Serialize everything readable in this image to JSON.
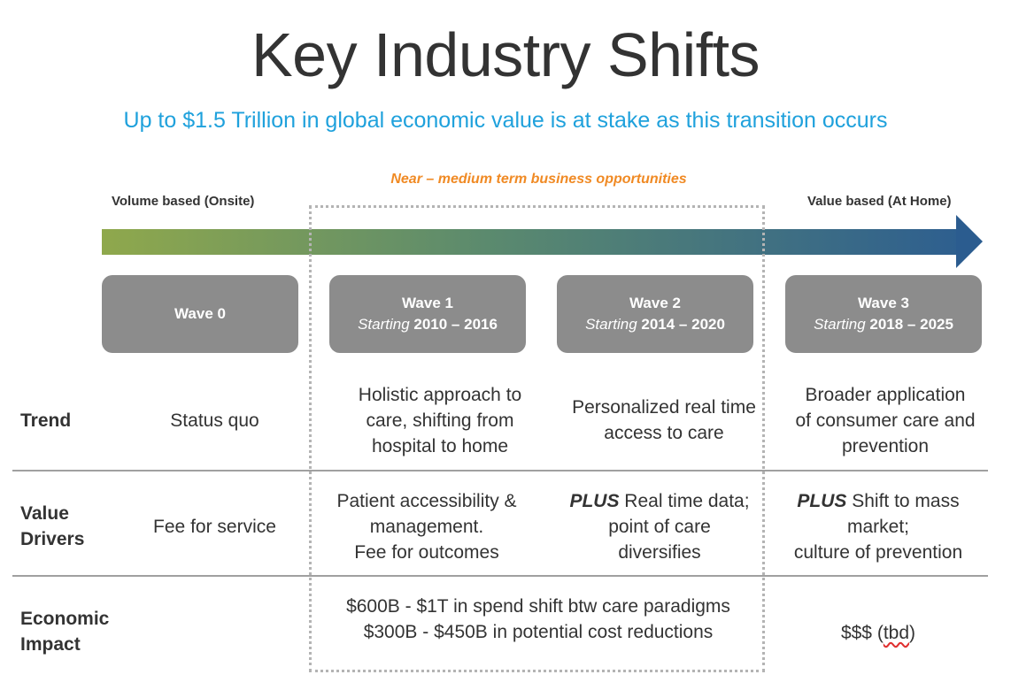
{
  "title": "Key Industry Shifts",
  "subtitle": "Up to $1.5 Trillion in global economic value is at stake as this transition occurs",
  "timeline": {
    "near_label": "Near – medium term business opportunities",
    "start_label": "Volume based (Onsite)",
    "end_label": "Value based (At Home)"
  },
  "waves": [
    {
      "name": "Wave 0",
      "starting": "",
      "years": ""
    },
    {
      "name": "Wave 1",
      "starting": "Starting",
      "years": "2010 – 2016"
    },
    {
      "name": "Wave 2",
      "starting": "Starting",
      "years": "2014 – 2020"
    },
    {
      "name": "Wave 3",
      "starting": "Starting",
      "years": "2018 – 2025"
    }
  ],
  "rows": {
    "trend": {
      "label": "Trend",
      "cells": [
        [
          "Status quo"
        ],
        [
          "Holistic approach to",
          "care, shifting from",
          "hospital to home"
        ],
        [
          "Personalized real time",
          "access to care"
        ],
        [
          "Broader application",
          "of consumer care and",
          "prevention"
        ]
      ]
    },
    "value_drivers": {
      "label_line1": "Value",
      "label_line2": "Drivers",
      "cells": [
        [
          "Fee for service"
        ],
        [
          "Patient accessibility &",
          "management.",
          "Fee for outcomes"
        ],
        {
          "plus": "PLUS",
          "lines": [
            " Real time data;",
            "point of care",
            "diversifies"
          ]
        },
        {
          "plus": "PLUS",
          "lines": [
            " Shift to mass",
            "market;",
            "culture of prevention"
          ]
        }
      ]
    },
    "economic_impact": {
      "label_line1": "Economic",
      "label_line2": "Impact",
      "middle": [
        "$600B - $1T in spend shift btw care paradigms",
        "$300B - $450B in potential cost reductions"
      ],
      "wave3_prefix": "$$$ (",
      "wave3_tbd": "tbd",
      "wave3_suffix": ")"
    }
  },
  "colors": {
    "title": "#333333",
    "subtitle": "#1fa1dc",
    "near_label": "#f08a24",
    "wave_box": "#8c8c8c",
    "arrow_start": "#8fa84c",
    "arrow_end": "#2e5f8f"
  }
}
